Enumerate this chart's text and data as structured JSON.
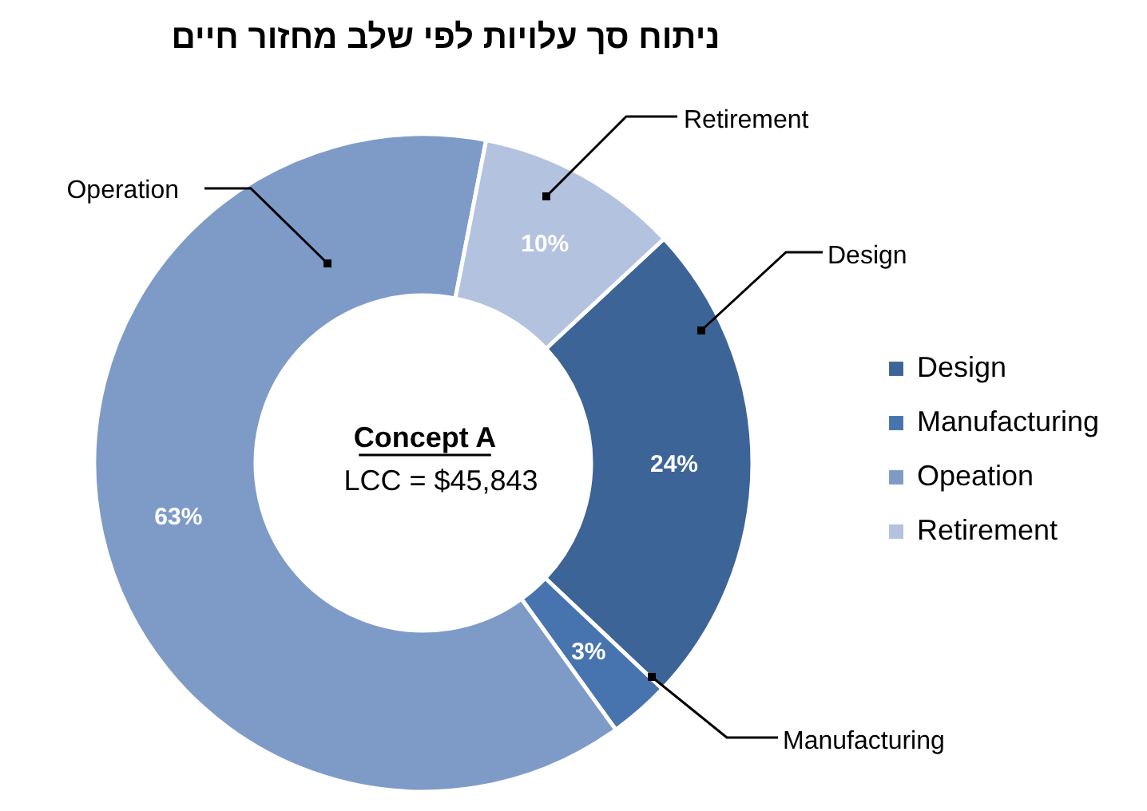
{
  "chart_data": {
    "type": "donut",
    "title": "ניתוח סך עלויות לפי שלב מחזור חיים",
    "categories": [
      "Design",
      "Manufacturing",
      "Opeation",
      "Retirement"
    ],
    "values": [
      24,
      3,
      63,
      10
    ],
    "colors": [
      "#3d6496",
      "#4774ae",
      "#7e9bc8",
      "#b3c2de"
    ],
    "value_labels": [
      "24%",
      "3%",
      "63%",
      "10%"
    ],
    "legend": "right",
    "annotations": [
      "Concept A",
      "LCC = $45,843",
      "Design",
      "Manufacturing",
      "Operation",
      "Retirement"
    ]
  }
}
